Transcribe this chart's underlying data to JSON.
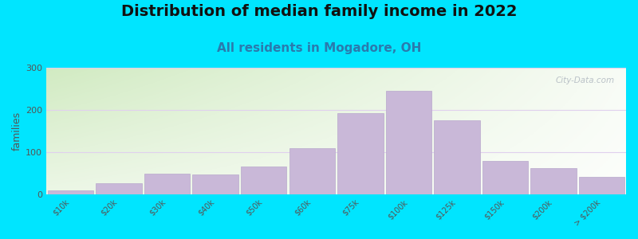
{
  "title": "Distribution of median family income in 2022",
  "subtitle": "All residents in Mogadore, OH",
  "ylabel": "families",
  "categories": [
    "$10k",
    "$20k",
    "$30k",
    "$40k",
    "$50k",
    "$60k",
    "$75k",
    "$100k",
    "$125k",
    "$150k",
    "$200k",
    "> $200k"
  ],
  "values": [
    8,
    25,
    48,
    47,
    65,
    110,
    192,
    245,
    175,
    78,
    62,
    42
  ],
  "bar_color": "#c9b8d8",
  "bar_edge_color": "#b8a8cc",
  "ylim": [
    0,
    300
  ],
  "yticks": [
    0,
    100,
    200,
    300
  ],
  "bg_outer": "#00e5ff",
  "title_fontsize": 14,
  "title_fontweight": "bold",
  "subtitle_fontsize": 11,
  "subtitle_color": "#2a7aad",
  "subtitle_fontweight": "bold",
  "watermark_text": "City-Data.com",
  "watermark_color": "#b0b8c0",
  "grid_color": "#e0d0ee",
  "tick_color": "#555555",
  "ylabel_color": "#555555"
}
